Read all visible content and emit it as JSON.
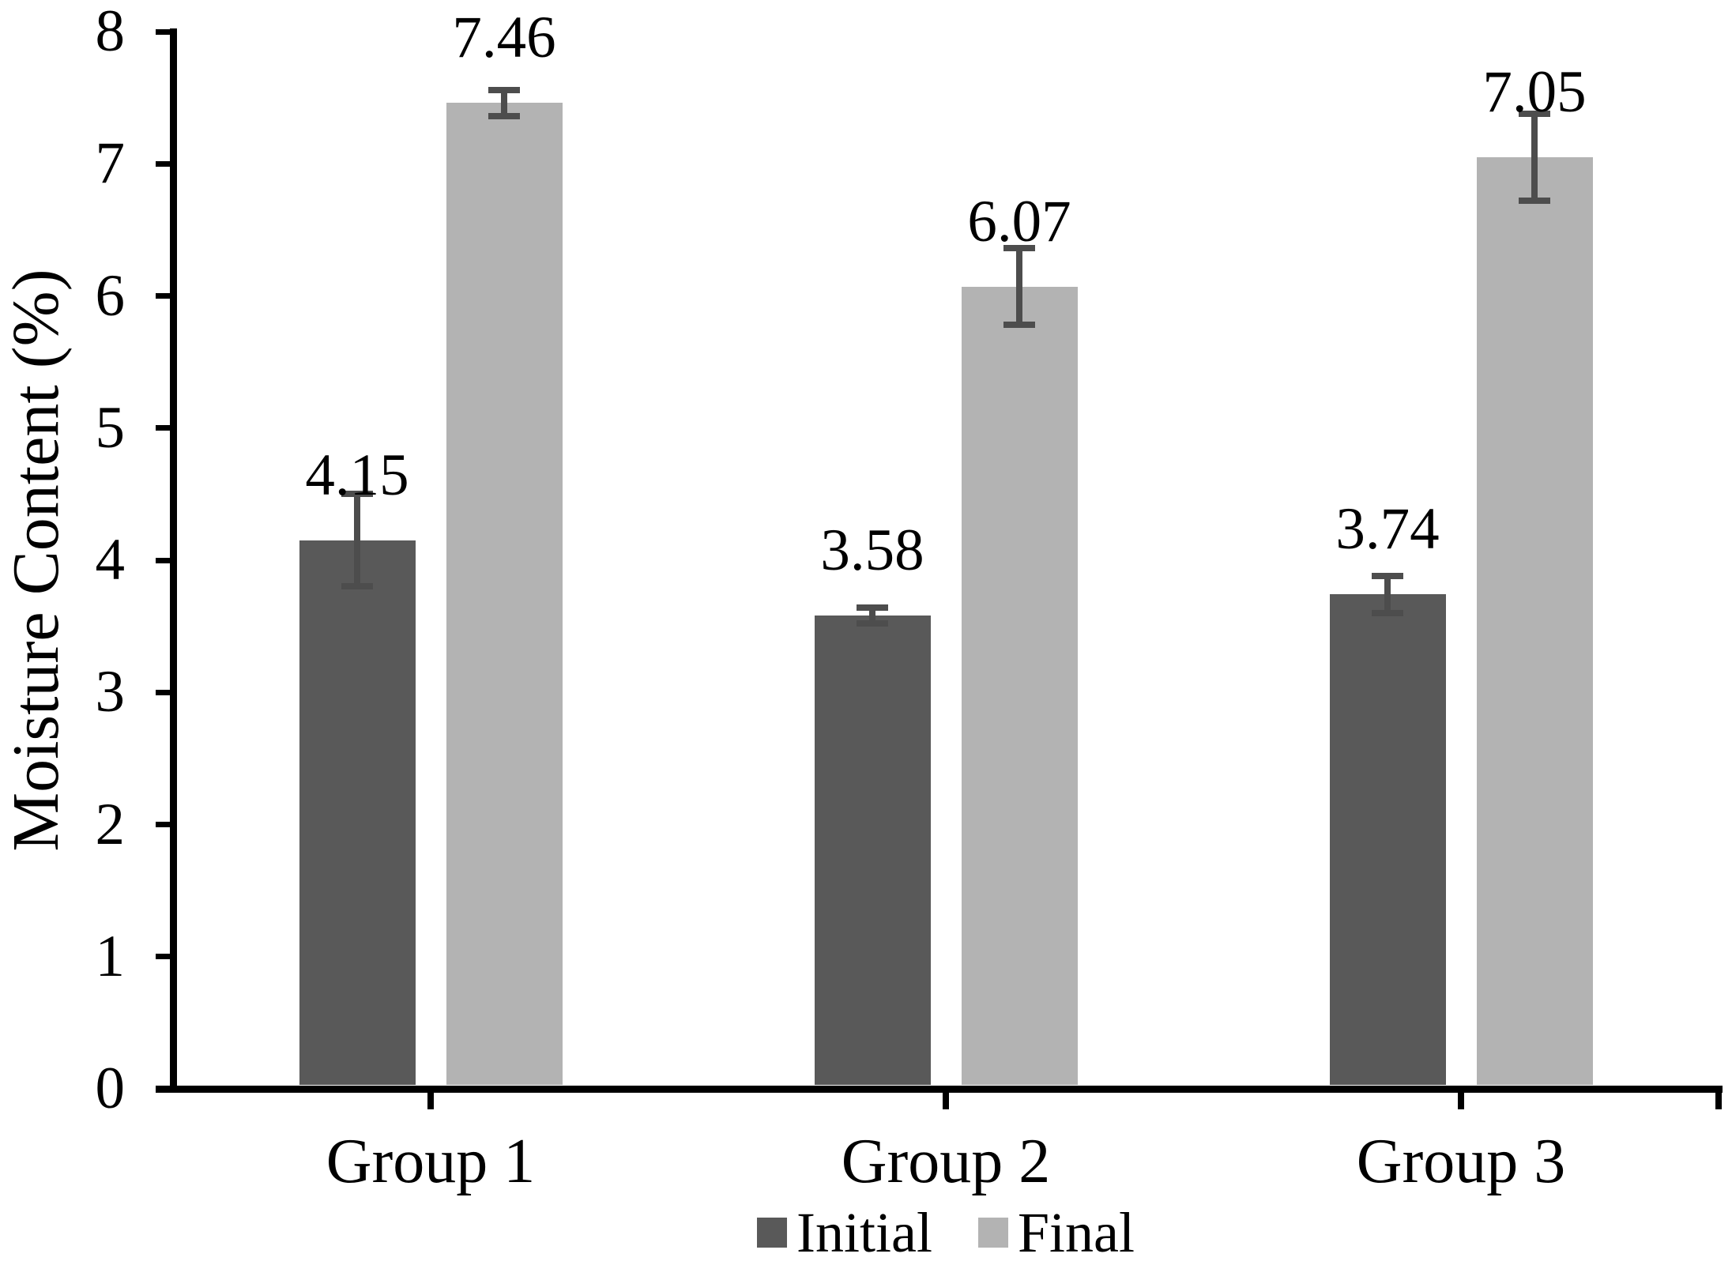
{
  "chart_data": {
    "type": "bar",
    "title": "",
    "ylabel": "Moisture Content (%)",
    "xlabel": "",
    "categories": [
      "Group 1",
      "Group 2",
      "Group 3"
    ],
    "series": [
      {
        "name": "Initial",
        "color": "#595959",
        "values": [
          4.15,
          3.58,
          3.74
        ],
        "errors": [
          0.35,
          0.06,
          0.14
        ]
      },
      {
        "name": "Final",
        "color": "#b3b3b3",
        "values": [
          7.46,
          6.07,
          7.05
        ],
        "errors": [
          0.1,
          0.29,
          0.33
        ]
      }
    ],
    "value_labels": [
      [
        "4.15",
        "3.58",
        "3.74"
      ],
      [
        "7.46",
        "6.07",
        "7.05"
      ]
    ],
    "yticks": [
      "0",
      "1",
      "2",
      "3",
      "4",
      "5",
      "6",
      "7",
      "8"
    ],
    "ylim": [
      0,
      8
    ],
    "grid": false,
    "legend_position": "bottom",
    "error_bar_color": "#4d4d4d",
    "axis_color": "#000000",
    "text_color": "#000000",
    "background": "#ffffff"
  }
}
